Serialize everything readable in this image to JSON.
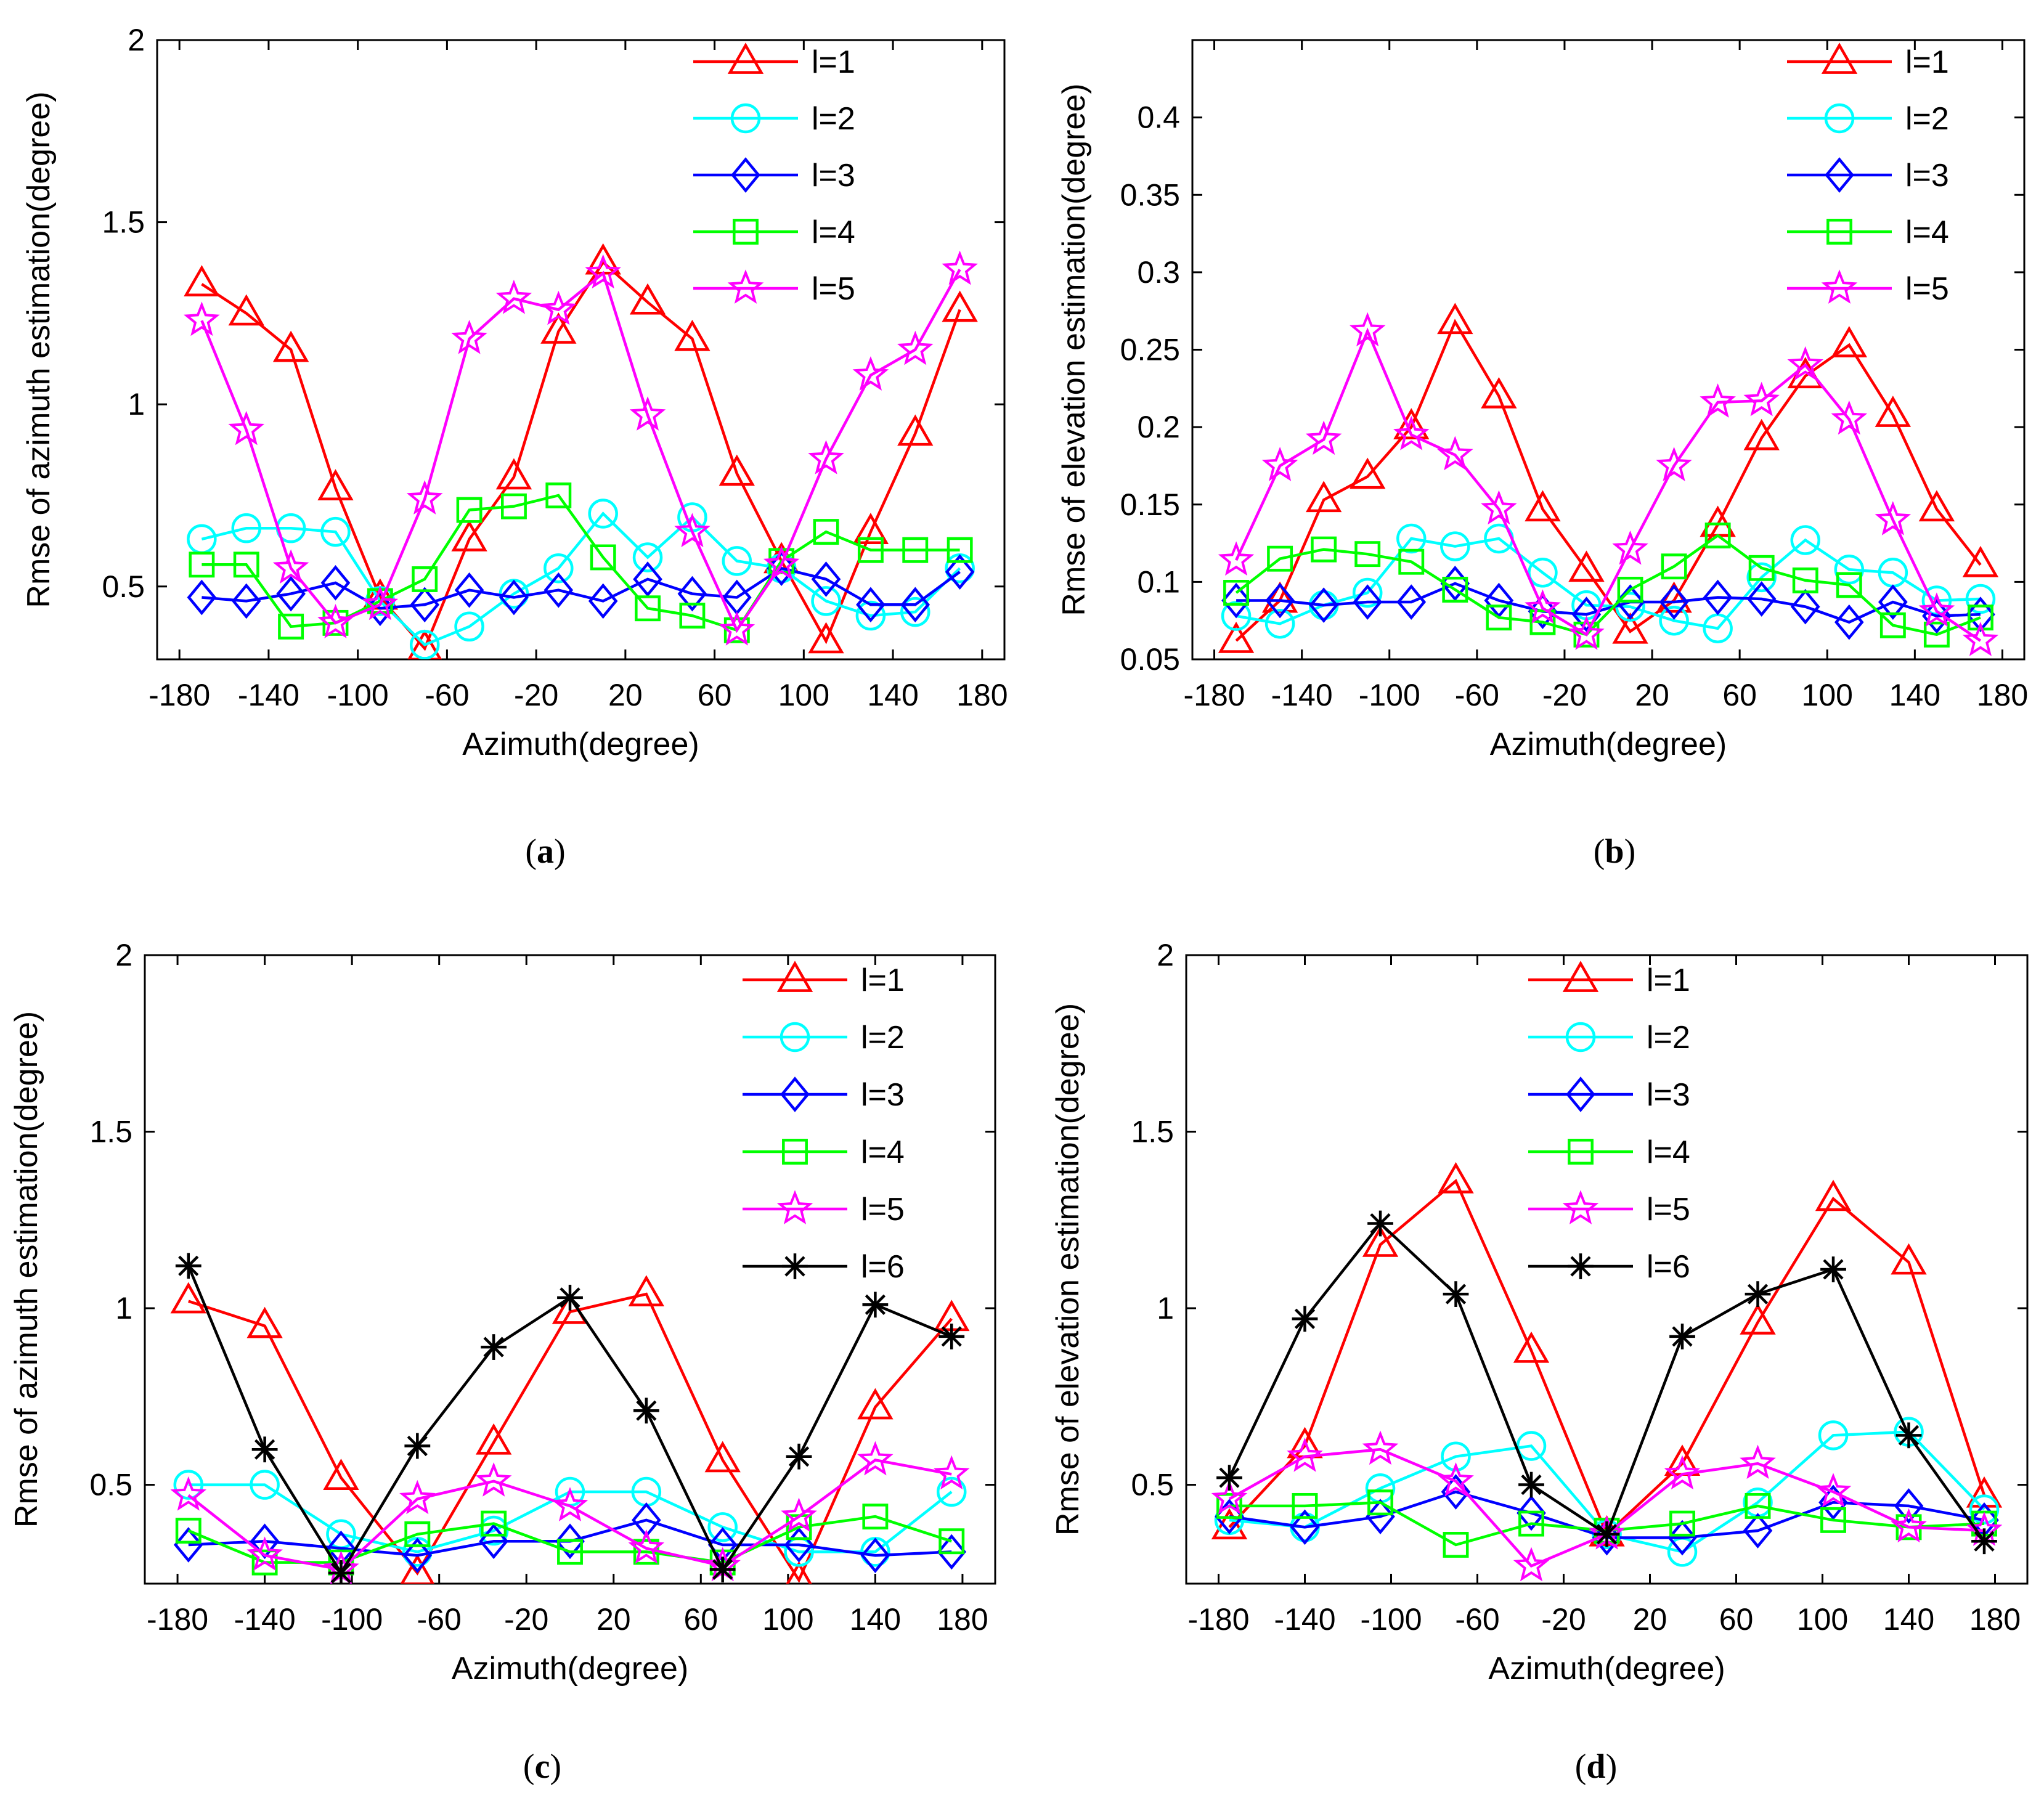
{
  "chart_data": [
    {
      "type": "line",
      "panel_label": "a",
      "xlabel": "Azimuth(degree)",
      "ylabel": "Rmse of azimuth estimation(degree)",
      "xlim": [
        -190,
        190
      ],
      "ylim": [
        0.3,
        2
      ],
      "xticks": [
        -180,
        -140,
        -100,
        -60,
        -20,
        20,
        60,
        100,
        140,
        180
      ],
      "yticks": [
        0.5,
        1,
        1.5,
        2
      ],
      "xtick_labels": [
        "-180",
        "-140",
        "-100",
        "-60",
        "-20",
        "20",
        "60",
        "100",
        "140",
        "180"
      ],
      "ytick_labels": [
        "0.5",
        "1",
        "1.5",
        "2"
      ],
      "x": [
        -170,
        -150,
        -130,
        -110,
        -90,
        -70,
        -50,
        -30,
        -10,
        10,
        30,
        50,
        70,
        90,
        110,
        130,
        150,
        170
      ],
      "series": [
        {
          "name": "l=1",
          "color": "#ff0000",
          "marker": "triangle",
          "values": [
            1.33,
            1.25,
            1.15,
            0.77,
            0.47,
            0.33,
            0.63,
            0.8,
            1.2,
            1.39,
            1.28,
            1.18,
            0.81,
            0.57,
            0.35,
            0.65,
            0.92,
            1.26
          ]
        },
        {
          "name": "l=2",
          "color": "#00ffff",
          "marker": "circle",
          "values": [
            0.63,
            0.66,
            0.66,
            0.65,
            0.46,
            0.34,
            0.39,
            0.48,
            0.55,
            0.7,
            0.58,
            0.69,
            0.57,
            0.55,
            0.46,
            0.42,
            0.43,
            0.55
          ]
        },
        {
          "name": "l=3",
          "color": "#0000ff",
          "marker": "diamond",
          "values": [
            0.47,
            0.46,
            0.48,
            0.51,
            0.44,
            0.45,
            0.49,
            0.47,
            0.49,
            0.46,
            0.52,
            0.48,
            0.47,
            0.55,
            0.52,
            0.45,
            0.45,
            0.54
          ]
        },
        {
          "name": "l=4",
          "color": "#00ff00",
          "marker": "square",
          "values": [
            0.56,
            0.56,
            0.39,
            0.4,
            0.46,
            0.52,
            0.71,
            0.72,
            0.75,
            0.58,
            0.44,
            0.42,
            0.38,
            0.57,
            0.65,
            0.6,
            0.6,
            0.6
          ]
        },
        {
          "name": "l=5",
          "color": "#ff00ff",
          "marker": "star",
          "values": [
            1.23,
            0.93,
            0.55,
            0.4,
            0.45,
            0.74,
            1.18,
            1.29,
            1.26,
            1.36,
            0.97,
            0.65,
            0.38,
            0.56,
            0.85,
            1.08,
            1.15,
            1.37
          ]
        }
      ]
    },
    {
      "type": "line",
      "panel_label": "b",
      "xlabel": "Azimuth(degree)",
      "ylabel": "Rmse of elevation estimation(degree)",
      "xlim": [
        -190,
        190
      ],
      "ylim": [
        0.05,
        0.45
      ],
      "xticks": [
        -180,
        -140,
        -100,
        -60,
        -20,
        20,
        60,
        100,
        140,
        180
      ],
      "yticks": [
        0.05,
        0.1,
        0.15,
        0.2,
        0.25,
        0.3,
        0.35,
        0.4
      ],
      "xtick_labels": [
        "-180",
        "-140",
        "-100",
        "-60",
        "-20",
        "20",
        "60",
        "100",
        "140",
        "180"
      ],
      "ytick_labels": [
        "0.05",
        "0.1",
        "0.15",
        "0.2",
        "0.25",
        "0.3",
        "0.35",
        "0.4"
      ],
      "x": [
        -170,
        -150,
        -130,
        -110,
        -90,
        -70,
        -50,
        -30,
        -10,
        10,
        30,
        50,
        70,
        90,
        110,
        130,
        150,
        170
      ],
      "series": [
        {
          "name": "l=1",
          "color": "#ff0000",
          "marker": "triangle",
          "values": [
            0.062,
            0.088,
            0.153,
            0.168,
            0.2,
            0.268,
            0.22,
            0.147,
            0.108,
            0.068,
            0.088,
            0.137,
            0.193,
            0.233,
            0.253,
            0.208,
            0.147,
            0.111
          ]
        },
        {
          "name": "l=2",
          "color": "#00ffff",
          "marker": "circle",
          "values": [
            0.078,
            0.073,
            0.085,
            0.093,
            0.128,
            0.123,
            0.128,
            0.106,
            0.085,
            0.084,
            0.075,
            0.07,
            0.103,
            0.127,
            0.108,
            0.106,
            0.088,
            0.089
          ]
        },
        {
          "name": "l=3",
          "color": "#0000ff",
          "marker": "diamond",
          "values": [
            0.088,
            0.088,
            0.085,
            0.087,
            0.087,
            0.099,
            0.088,
            0.081,
            0.079,
            0.087,
            0.087,
            0.09,
            0.089,
            0.084,
            0.074,
            0.087,
            0.078,
            0.079
          ]
        },
        {
          "name": "l=4",
          "color": "#00ff00",
          "marker": "square",
          "values": [
            0.093,
            0.115,
            0.121,
            0.118,
            0.113,
            0.095,
            0.077,
            0.074,
            0.066,
            0.095,
            0.11,
            0.13,
            0.109,
            0.101,
            0.098,
            0.072,
            0.066,
            0.077
          ]
        },
        {
          "name": "l=5",
          "color": "#ff00ff",
          "marker": "star",
          "values": [
            0.114,
            0.175,
            0.192,
            0.262,
            0.195,
            0.182,
            0.147,
            0.083,
            0.066,
            0.121,
            0.175,
            0.216,
            0.217,
            0.24,
            0.205,
            0.14,
            0.081,
            0.062
          ]
        }
      ]
    },
    {
      "type": "line",
      "panel_label": "c",
      "xlabel": "Azimuth(degree)",
      "ylabel": "Rmse of azimuth estimation(degree)",
      "xlim": [
        -195,
        195
      ],
      "ylim": [
        0.22,
        2
      ],
      "xticks": [
        -180,
        -140,
        -100,
        -60,
        -20,
        20,
        60,
        100,
        140,
        180
      ],
      "yticks": [
        0.5,
        1,
        1.5,
        2
      ],
      "xtick_labels": [
        "-180",
        "-140",
        "-100",
        "-60",
        "-20",
        "20",
        "60",
        "100",
        "140",
        "180"
      ],
      "ytick_labels": [
        "0.5",
        "1",
        "1.5",
        "2"
      ],
      "x": [
        -175,
        -140,
        -105,
        -70,
        -35,
        0,
        35,
        70,
        105,
        140,
        175
      ],
      "series": [
        {
          "name": "l=1",
          "color": "#ff0000",
          "marker": "triangle",
          "values": [
            1.02,
            0.95,
            0.52,
            0.25,
            0.62,
            0.99,
            1.04,
            0.57,
            0.23,
            0.72,
            0.97
          ]
        },
        {
          "name": "l=2",
          "color": "#00ffff",
          "marker": "circle",
          "values": [
            0.5,
            0.5,
            0.36,
            0.31,
            0.37,
            0.48,
            0.48,
            0.38,
            0.31,
            0.31,
            0.48
          ]
        },
        {
          "name": "l=3",
          "color": "#0000ff",
          "marker": "diamond",
          "values": [
            0.33,
            0.34,
            0.32,
            0.3,
            0.34,
            0.34,
            0.4,
            0.33,
            0.33,
            0.3,
            0.31
          ]
        },
        {
          "name": "l=4",
          "color": "#00ff00",
          "marker": "square",
          "values": [
            0.37,
            0.28,
            0.28,
            0.36,
            0.39,
            0.31,
            0.31,
            0.28,
            0.38,
            0.41,
            0.34
          ]
        },
        {
          "name": "l=5",
          "color": "#ff00ff",
          "marker": "star",
          "values": [
            0.47,
            0.3,
            0.26,
            0.46,
            0.51,
            0.44,
            0.32,
            0.27,
            0.41,
            0.57,
            0.53
          ]
        },
        {
          "name": "l=6",
          "color": "#000000",
          "marker": "asterisk",
          "values": [
            1.12,
            0.6,
            0.25,
            0.61,
            0.89,
            1.03,
            0.71,
            0.26,
            0.58,
            1.01,
            0.92
          ]
        }
      ]
    },
    {
      "type": "line",
      "panel_label": "d",
      "xlabel": "Azimuth(degree)",
      "ylabel": "Rmse of elevation estimation(degree)",
      "xlim": [
        -195,
        195
      ],
      "ylim": [
        0.22,
        2
      ],
      "xticks": [
        -180,
        -140,
        -100,
        -60,
        -20,
        20,
        60,
        100,
        140,
        180
      ],
      "yticks": [
        0.5,
        1,
        1.5,
        2
      ],
      "xtick_labels": [
        "-180",
        "-140",
        "-100",
        "-60",
        "-20",
        "20",
        "60",
        "100",
        "140",
        "180"
      ],
      "ytick_labels": [
        "0.5",
        "1",
        "1.5",
        "2"
      ],
      "x": [
        -175,
        -140,
        -105,
        -70,
        -35,
        0,
        35,
        70,
        105,
        140,
        175
      ],
      "series": [
        {
          "name": "l=1",
          "color": "#ff0000",
          "marker": "triangle",
          "values": [
            0.38,
            0.61,
            1.18,
            1.36,
            0.88,
            0.36,
            0.56,
            0.96,
            1.31,
            1.13,
            0.47
          ]
        },
        {
          "name": "l=2",
          "color": "#00ffff",
          "marker": "circle",
          "values": [
            0.4,
            0.38,
            0.49,
            0.58,
            0.61,
            0.36,
            0.31,
            0.45,
            0.64,
            0.65,
            0.43
          ]
        },
        {
          "name": "l=3",
          "color": "#0000ff",
          "marker": "diamond",
          "values": [
            0.41,
            0.38,
            0.41,
            0.48,
            0.42,
            0.35,
            0.35,
            0.37,
            0.45,
            0.44,
            0.4
          ]
        },
        {
          "name": "l=4",
          "color": "#00ff00",
          "marker": "square",
          "values": [
            0.44,
            0.44,
            0.45,
            0.33,
            0.39,
            0.37,
            0.39,
            0.44,
            0.4,
            0.38,
            0.39
          ]
        },
        {
          "name": "l=5",
          "color": "#ff00ff",
          "marker": "star",
          "values": [
            0.46,
            0.58,
            0.6,
            0.51,
            0.27,
            0.36,
            0.53,
            0.56,
            0.48,
            0.38,
            0.37
          ]
        },
        {
          "name": "l=6",
          "color": "#000000",
          "marker": "asterisk",
          "values": [
            0.52,
            0.97,
            1.24,
            1.04,
            0.5,
            0.36,
            0.92,
            1.04,
            1.11,
            0.64,
            0.34
          ]
        }
      ]
    }
  ]
}
